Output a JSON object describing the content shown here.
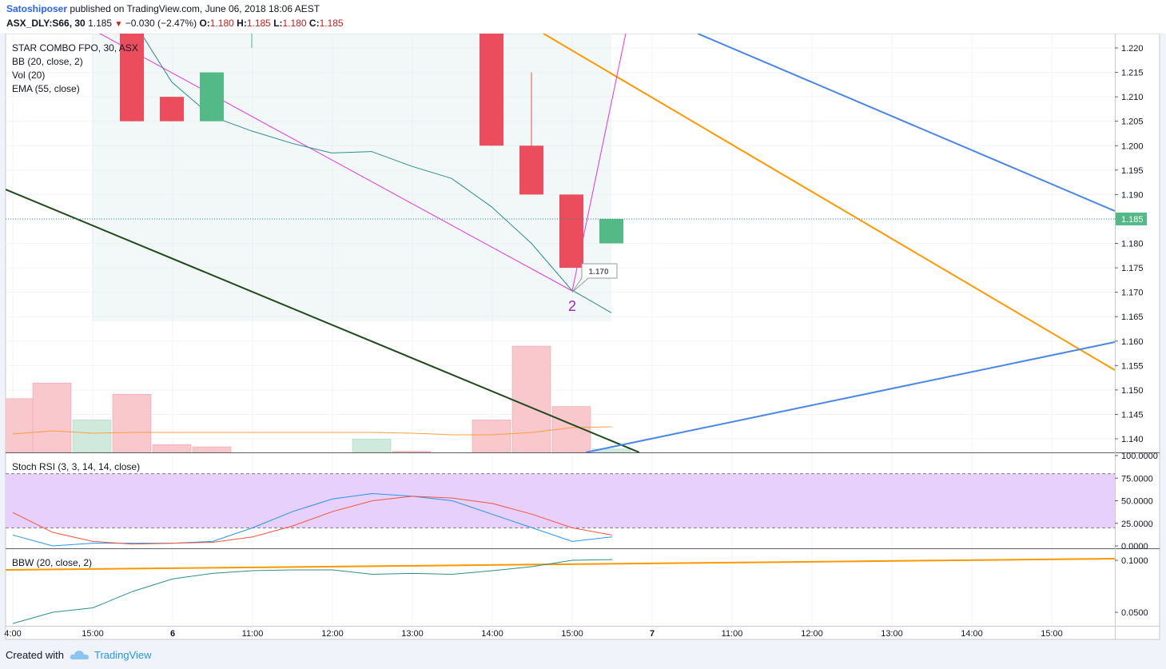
{
  "header": {
    "author": "Satoshiposer",
    "published": "published on TradingView.com, June 06, 2018 18:06 AEST",
    "symbol": "ASX_DLY:S66, 30",
    "last": "1.185",
    "change": "−0.030 (−2.47%)",
    "o_label": "O:",
    "o": "1.180",
    "h_label": "H:",
    "h": "1.185",
    "l_label": "L:",
    "l": "1.180",
    "c_label": "C:",
    "c": "1.185"
  },
  "legend": [
    "STAR COMBO FPO, 30, ASX",
    "BB (20, close, 2)",
    "Vol (20)",
    "EMA (55, close)"
  ],
  "footer": {
    "created": "Created with",
    "brand": "TradingView"
  },
  "colors": {
    "up": "#53b987",
    "down": "#eb4d5c",
    "vol_up": "#cfe9dc",
    "vol_down": "#f8c8cc",
    "bb": "#2a8f8a",
    "trend_orange": "#ff9800",
    "trend_blue": "#4a86e8",
    "trend_dark": "#1f4a1a",
    "magenta": "#e535e6",
    "stoch_k": "#2196f3",
    "stoch_d": "#f2543c",
    "stoch_band": "#e8d0fc"
  },
  "chart_data": [
    {
      "type": "candlestick",
      "title": "STAR COMBO FPO, 30, ASX",
      "x_ticks": [
        "4:00",
        "15:00",
        "6",
        "11:00",
        "12:00",
        "13:00",
        "14:00",
        "15:00",
        "7",
        "11:00",
        "12:00",
        "13:00",
        "14:00",
        "15:00"
      ],
      "y_ticks": [
        "1.220",
        "1.215",
        "1.210",
        "1.205",
        "1.200",
        "1.195",
        "1.190",
        "1.185",
        "1.180",
        "1.175",
        "1.170",
        "1.165",
        "1.160",
        "1.155",
        "1.150",
        "1.145",
        "1.140"
      ],
      "ylim": [
        1.137,
        1.222
      ],
      "last_price_label": "1.185",
      "candles": [
        {
          "o": 1.23,
          "h": 1.23,
          "l": 1.205,
          "c": 1.205
        },
        {
          "o": 1.21,
          "h": 1.21,
          "l": 1.205,
          "c": 1.205
        },
        {
          "o": 1.205,
          "h": 1.215,
          "l": 1.205,
          "c": 1.215
        },
        {
          "o": 1.23,
          "h": 1.23,
          "l": 1.22,
          "c": 1.23
        },
        {
          "o": 1.23,
          "h": 1.23,
          "l": 1.2,
          "c": 1.2
        },
        {
          "o": 1.2,
          "h": 1.215,
          "l": 1.19,
          "c": 1.19
        },
        {
          "o": 1.19,
          "h": 1.19,
          "l": 1.175,
          "c": 1.175
        },
        {
          "o": 1.18,
          "h": 1.185,
          "l": 1.18,
          "c": 1.185
        }
      ],
      "volume": [
        {
          "v": 0.48,
          "up": false
        },
        {
          "v": 0.62,
          "up": false
        },
        {
          "v": 0.29,
          "up": true
        },
        {
          "v": 0.52,
          "up": false
        },
        {
          "v": 0.07,
          "up": false
        },
        {
          "v": 0.05,
          "up": false
        },
        {
          "v": 0.12,
          "up": true
        },
        {
          "v": 0.01,
          "up": false
        },
        {
          "v": 0.29,
          "up": false
        },
        {
          "v": 0.95,
          "up": false
        },
        {
          "v": 0.41,
          "up": false
        },
        {
          "v": 0.03,
          "up": true
        }
      ],
      "bb_basis": [
        1.226,
        1.213,
        1.206,
        1.203,
        1.2005,
        1.1985,
        1.1988,
        1.1958,
        1.1933,
        1.1875,
        1.18,
        1.1705,
        1.1658
      ],
      "annotation_price": "1.170",
      "annotation_label": "2"
    },
    {
      "type": "line",
      "title": "Stoch RSI (3, 3, 14, 14, close)",
      "y_ticks": [
        "100.0000",
        "75.0000",
        "50.0000",
        "25.0000",
        "0.0000"
      ],
      "ylim": [
        0,
        100
      ],
      "band": [
        20,
        80
      ],
      "series": [
        {
          "values": [
            12,
            0,
            3,
            3,
            3,
            5,
            20,
            38,
            52,
            58,
            55,
            50,
            35,
            20,
            5,
            10
          ]
        },
        {
          "values": [
            37,
            15,
            5,
            2,
            3,
            4,
            10,
            22,
            38,
            50,
            55,
            53,
            47,
            35,
            20,
            12
          ]
        }
      ]
    },
    {
      "type": "line",
      "title": "BBW (20, close, 2)",
      "y_ticks": [
        "0.1000",
        "0.0500"
      ],
      "series": [
        {
          "values": [
            0.043,
            0.05,
            0.053,
            0.066,
            0.078,
            0.084,
            0.087,
            0.088,
            0.088,
            0.083,
            0.084,
            0.083,
            0.087,
            0.092,
            0.1,
            0.101
          ]
        }
      ]
    }
  ]
}
